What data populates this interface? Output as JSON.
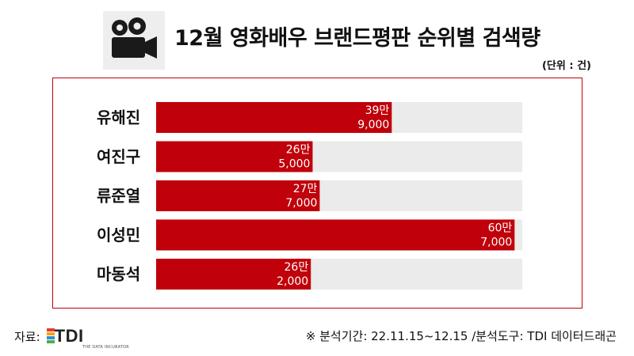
{
  "header": {
    "title": "12월 영화배우 브랜드평판 순위별 검색량",
    "unit": "(단위 : 건)",
    "icon": "movie-camera-icon"
  },
  "footer": {
    "source_label": "자료:",
    "logo_text": "TDI",
    "logo_sub": "THE DATA INCUBATOR",
    "note": "※ 분석기간: 22.11.15~12.15 /분석도구: TDI 데이터드래곤"
  },
  "chart_data": {
    "type": "bar",
    "orientation": "horizontal",
    "categories": [
      "유해진",
      "여진구",
      "류준열",
      "이성민",
      "마동석"
    ],
    "values": [
      399000,
      265000,
      277000,
      607000,
      262000
    ],
    "value_labels": [
      [
        "39만",
        "9,000"
      ],
      [
        "26만",
        "5,000"
      ],
      [
        "27만",
        "7,000"
      ],
      [
        "60만",
        "7,000"
      ],
      [
        "26만",
        "2,000"
      ]
    ],
    "xlim": [
      0,
      620000
    ],
    "bar_color": "#c0000a",
    "track_color": "#ebebeb",
    "grid": false,
    "legend": "none"
  }
}
